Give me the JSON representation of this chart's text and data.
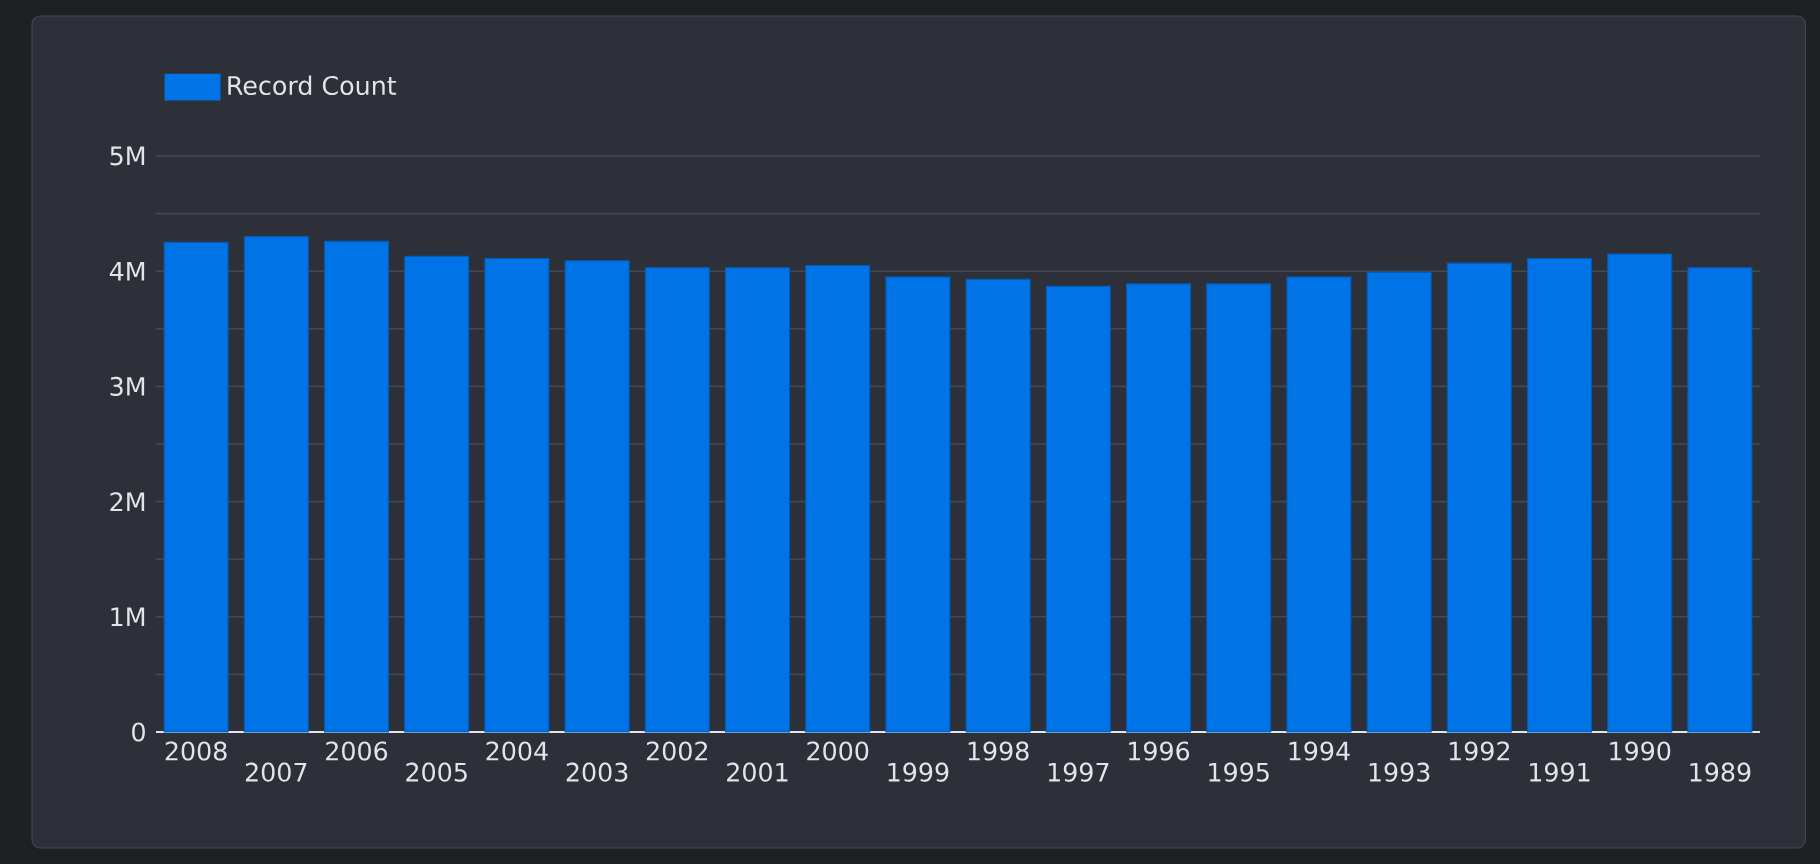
{
  "chart_data": {
    "type": "bar",
    "categories": [
      "2008",
      "2007",
      "2006",
      "2005",
      "2004",
      "2003",
      "2002",
      "2001",
      "2000",
      "1999",
      "1998",
      "1997",
      "1996",
      "1995",
      "1994",
      "1993",
      "1992",
      "1991",
      "1990",
      "1989"
    ],
    "series": [
      {
        "name": "Record Count",
        "color": "#0073e6",
        "values": [
          4250000,
          4300000,
          4260000,
          4130000,
          4110000,
          4090000,
          4030000,
          4030000,
          4050000,
          3950000,
          3930000,
          3870000,
          3890000,
          3890000,
          3950000,
          3990000,
          4070000,
          4110000,
          4150000,
          4030000
        ]
      }
    ],
    "ylim": [
      0,
      5000000
    ],
    "yticks": [
      {
        "value": 0,
        "label": "0"
      },
      {
        "value": 500000,
        "label": null
      },
      {
        "value": 1000000,
        "label": "1M"
      },
      {
        "value": 1500000,
        "label": null
      },
      {
        "value": 2000000,
        "label": "2M"
      },
      {
        "value": 2500000,
        "label": null
      },
      {
        "value": 3000000,
        "label": "3M"
      },
      {
        "value": 3500000,
        "label": null
      },
      {
        "value": 4000000,
        "label": "4M"
      },
      {
        "value": 4500000,
        "label": null
      },
      {
        "value": 5000000,
        "label": "5M"
      }
    ],
    "grid": "y",
    "legend": "top left"
  }
}
